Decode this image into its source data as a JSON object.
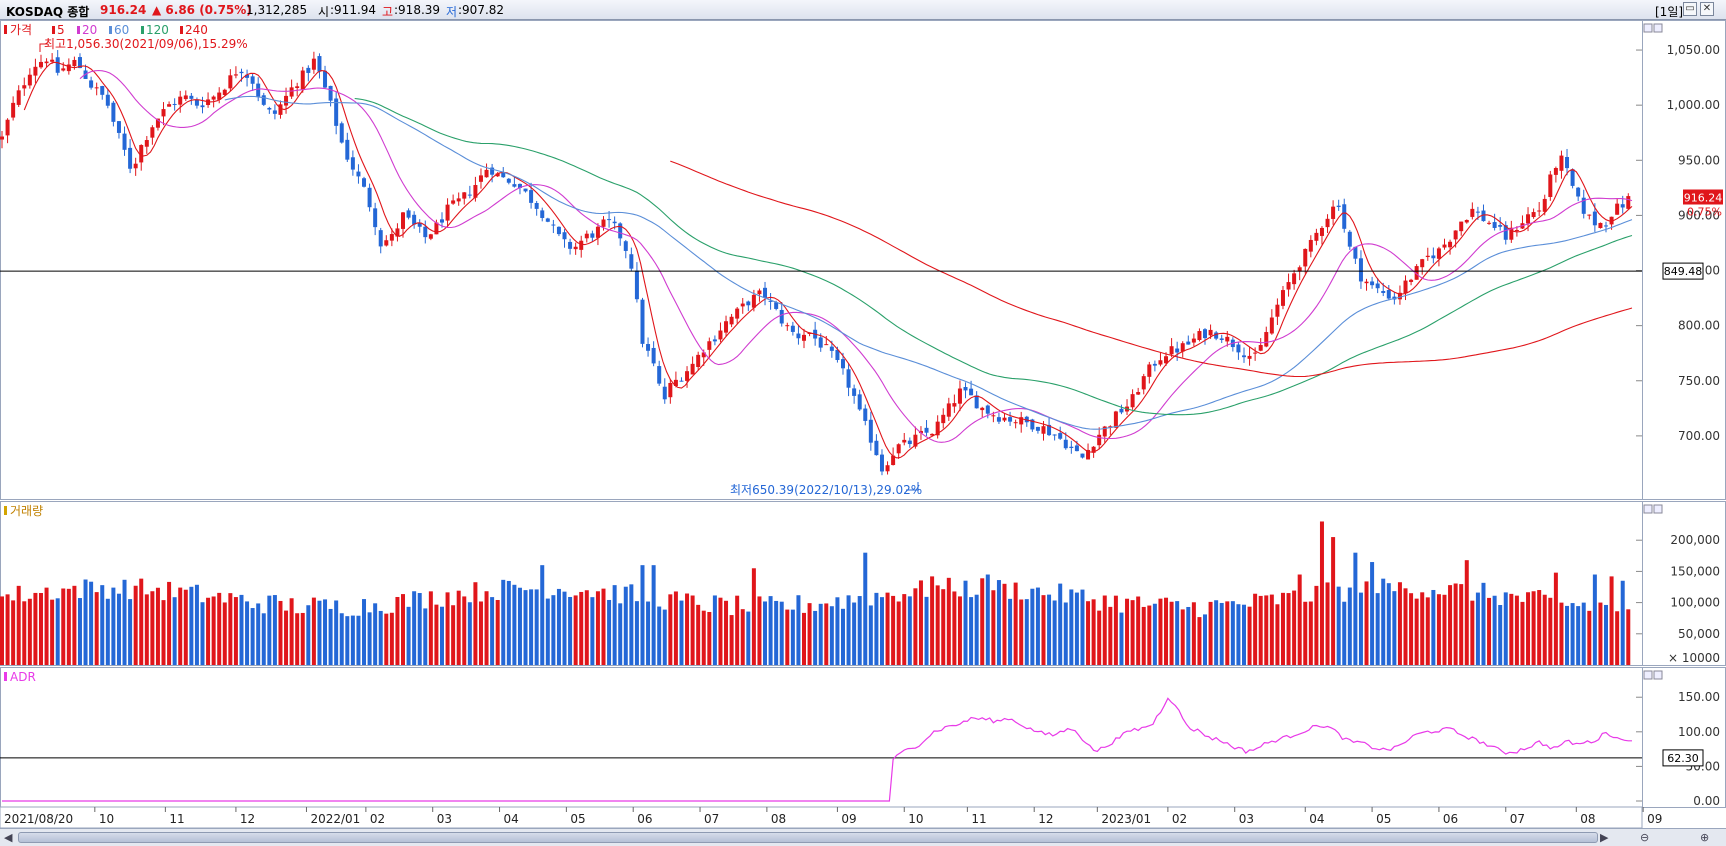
{
  "header": {
    "name": "KOSDAQ 종합",
    "price": "916.24",
    "change": "▲ 6.86 (0.75%)",
    "volume": "1,312,285",
    "open_label": "시",
    "open": ":911.94",
    "high_label": "고",
    "high": ":918.39",
    "low_label": "저",
    "low": ":907.82",
    "period": "[1일]"
  },
  "colors": {
    "up": "#e0161b",
    "down": "#2467d6",
    "ma5": "#e0161b",
    "ma20": "#d03cd0",
    "ma60": "#5a8ed8",
    "ma120": "#2aa06a",
    "ma240": "#e0161b",
    "adr": "#e83ae8"
  },
  "chart_data": [
    {
      "type": "candlestick",
      "title": "가격",
      "legend": [
        "5",
        "20",
        "60",
        "120",
        "240"
      ],
      "ylim": [
        650,
        1070
      ],
      "y_ticks": [
        "1,050.00",
        "1,000.00",
        "950.00",
        "900.00",
        "850.00",
        "800.00",
        "750.00",
        "700.00"
      ],
      "last_price_label": "916.24",
      "last_change_label": "0.75%",
      "hline_label": "849.48",
      "hline_value": 849.48,
      "max_annotation": "최고1,056.30(2021/09/06),15.29%",
      "min_annotation": "최저650.39(2022/10/13),29.02%",
      "close_path": [
        [
          0,
          970
        ],
        [
          6,
          1000
        ],
        [
          16,
          1035
        ],
        [
          24,
          1043
        ],
        [
          30,
          1030
        ],
        [
          40,
          1040
        ],
        [
          48,
          1018
        ],
        [
          56,
          1005
        ],
        [
          62,
          975
        ],
        [
          66,
          958
        ],
        [
          70,
          940
        ],
        [
          74,
          960
        ],
        [
          82,
          985
        ],
        [
          90,
          1000
        ],
        [
          98,
          1008
        ],
        [
          106,
          1000
        ],
        [
          114,
          1008
        ],
        [
          120,
          1018
        ],
        [
          128,
          1035
        ],
        [
          136,
          1020
        ],
        [
          140,
          1000
        ],
        [
          146,
          990
        ],
        [
          152,
          1005
        ],
        [
          158,
          1020
        ],
        [
          164,
          1030
        ],
        [
          168,
          1040
        ],
        [
          172,
          1025
        ],
        [
          178,
          995
        ],
        [
          184,
          960
        ],
        [
          190,
          940
        ],
        [
          196,
          920
        ],
        [
          200,
          900
        ],
        [
          204,
          875
        ],
        [
          210,
          880
        ],
        [
          216,
          900
        ],
        [
          222,
          890
        ],
        [
          228,
          880
        ],
        [
          234,
          890
        ],
        [
          240,
          905
        ],
        [
          248,
          915
        ],
        [
          256,
          930
        ],
        [
          262,
          945
        ],
        [
          268,
          935
        ],
        [
          276,
          930
        ],
        [
          282,
          920
        ],
        [
          290,
          905
        ],
        [
          296,
          890
        ],
        [
          302,
          875
        ],
        [
          308,
          870
        ],
        [
          314,
          880
        ],
        [
          320,
          885
        ],
        [
          326,
          895
        ],
        [
          332,
          885
        ],
        [
          336,
          870
        ],
        [
          340,
          850
        ],
        [
          344,
          790
        ],
        [
          348,
          775
        ],
        [
          352,
          760
        ],
        [
          356,
          730
        ],
        [
          360,
          745
        ],
        [
          366,
          755
        ],
        [
          372,
          765
        ],
        [
          378,
          780
        ],
        [
          384,
          790
        ],
        [
          388,
          800
        ],
        [
          396,
          812
        ],
        [
          402,
          822
        ],
        [
          410,
          830
        ],
        [
          416,
          815
        ],
        [
          422,
          800
        ],
        [
          428,
          790
        ],
        [
          434,
          795
        ],
        [
          440,
          785
        ],
        [
          446,
          775
        ],
        [
          452,
          760
        ],
        [
          458,
          740
        ],
        [
          462,
          720
        ],
        [
          466,
          705
        ],
        [
          470,
          690
        ],
        [
          474,
          670
        ],
        [
          478,
          680
        ],
        [
          482,
          690
        ],
        [
          488,
          693
        ],
        [
          494,
          700
        ],
        [
          502,
          705
        ],
        [
          508,
          720
        ],
        [
          516,
          740
        ],
        [
          522,
          735
        ],
        [
          528,
          725
        ],
        [
          536,
          718
        ],
        [
          544,
          715
        ],
        [
          552,
          712
        ],
        [
          560,
          708
        ],
        [
          566,
          702
        ],
        [
          572,
          695
        ],
        [
          578,
          685
        ],
        [
          582,
          680
        ],
        [
          586,
          690
        ],
        [
          590,
          700
        ],
        [
          596,
          710
        ],
        [
          602,
          722
        ],
        [
          608,
          730
        ],
        [
          614,
          750
        ],
        [
          620,
          765
        ],
        [
          626,
          775
        ],
        [
          632,
          778
        ],
        [
          638,
          782
        ],
        [
          644,
          790
        ],
        [
          650,
          795
        ],
        [
          656,
          792
        ],
        [
          662,
          785
        ],
        [
          670,
          775
        ],
        [
          676,
          770
        ],
        [
          680,
          790
        ],
        [
          686,
          815
        ],
        [
          692,
          835
        ],
        [
          698,
          855
        ],
        [
          704,
          870
        ],
        [
          710,
          890
        ],
        [
          716,
          905
        ],
        [
          720,
          912
        ],
        [
          722,
          895
        ],
        [
          726,
          870
        ],
        [
          732,
          845
        ],
        [
          738,
          835
        ],
        [
          744,
          830
        ],
        [
          750,
          825
        ],
        [
          756,
          838
        ],
        [
          762,
          850
        ],
        [
          768,
          862
        ],
        [
          774,
          868
        ],
        [
          780,
          880
        ],
        [
          786,
          895
        ],
        [
          792,
          905
        ],
        [
          798,
          897
        ],
        [
          804,
          890
        ],
        [
          810,
          880
        ],
        [
          816,
          890
        ],
        [
          822,
          900
        ],
        [
          828,
          905
        ],
        [
          832,
          920
        ],
        [
          836,
          945
        ],
        [
          840,
          950
        ],
        [
          844,
          935
        ],
        [
          848,
          915
        ],
        [
          852,
          905
        ],
        [
          856,
          895
        ],
        [
          860,
          892
        ],
        [
          864,
          895
        ],
        [
          868,
          905
        ],
        [
          872,
          908
        ],
        [
          876,
          915
        ],
        [
          878,
          912
        ]
      ]
    },
    {
      "type": "bar",
      "title": "거래량",
      "unit_label": "× 10000",
      "ylim": [
        0,
        250000
      ],
      "y_ticks": [
        "200,000",
        "150,000",
        "100,000",
        "50,000"
      ],
      "highlights": [
        [
          290,
          160000
        ],
        [
          346,
          160000
        ],
        [
          350,
          160000
        ],
        [
          404,
          155000
        ],
        [
          464,
          180000
        ],
        [
          500,
          142000
        ],
        [
          530,
          145000
        ],
        [
          700,
          145000
        ],
        [
          710,
          200000
        ],
        [
          712,
          230000
        ],
        [
          718,
          205000
        ],
        [
          730,
          180000
        ],
        [
          738,
          165000
        ],
        [
          790,
          168000
        ],
        [
          838,
          148000
        ],
        [
          858,
          145000
        ],
        [
          868,
          142000
        ],
        [
          874,
          135000
        ]
      ]
    },
    {
      "type": "line",
      "title": "ADR",
      "ylim": [
        0,
        185
      ],
      "y_ticks": [
        "150.00",
        "100.00",
        "50.00",
        "0.00"
      ],
      "hline_label": "62.30",
      "hline_value": 62.3,
      "path": [
        [
          0,
          0
        ],
        [
          478,
          0
        ],
        [
          480,
          60
        ],
        [
          486,
          72
        ],
        [
          494,
          82
        ],
        [
          502,
          100
        ],
        [
          510,
          108
        ],
        [
          518,
          113
        ],
        [
          522,
          120
        ],
        [
          530,
          118
        ],
        [
          536,
          115
        ],
        [
          542,
          120
        ],
        [
          548,
          112
        ],
        [
          554,
          104
        ],
        [
          560,
          98
        ],
        [
          566,
          95
        ],
        [
          572,
          102
        ],
        [
          578,
          104
        ],
        [
          582,
          90
        ],
        [
          586,
          78
        ],
        [
          590,
          72
        ],
        [
          596,
          82
        ],
        [
          602,
          92
        ],
        [
          608,
          102
        ],
        [
          614,
          105
        ],
        [
          620,
          112
        ],
        [
          624,
          130
        ],
        [
          628,
          150
        ],
        [
          632,
          140
        ],
        [
          636,
          118
        ],
        [
          640,
          105
        ],
        [
          646,
          100
        ],
        [
          650,
          92
        ],
        [
          656,
          88
        ],
        [
          662,
          80
        ],
        [
          670,
          72
        ],
        [
          676,
          76
        ],
        [
          680,
          82
        ],
        [
          686,
          88
        ],
        [
          692,
          92
        ],
        [
          698,
          98
        ],
        [
          704,
          104
        ],
        [
          710,
          110
        ],
        [
          716,
          105
        ],
        [
          722,
          92
        ],
        [
          726,
          86
        ],
        [
          732,
          84
        ],
        [
          738,
          78
        ],
        [
          744,
          74
        ],
        [
          750,
          76
        ],
        [
          756,
          86
        ],
        [
          762,
          96
        ],
        [
          768,
          100
        ],
        [
          774,
          102
        ],
        [
          780,
          104
        ],
        [
          786,
          96
        ],
        [
          792,
          90
        ],
        [
          798,
          84
        ],
        [
          804,
          76
        ],
        [
          810,
          70
        ],
        [
          816,
          72
        ],
        [
          822,
          78
        ],
        [
          828,
          85
        ],
        [
          832,
          80
        ],
        [
          836,
          76
        ],
        [
          840,
          82
        ],
        [
          844,
          86
        ],
        [
          848,
          82
        ],
        [
          852,
          84
        ],
        [
          856,
          86
        ],
        [
          860,
          90
        ],
        [
          864,
          100
        ],
        [
          868,
          94
        ],
        [
          872,
          88
        ],
        [
          878,
          90
        ]
      ]
    }
  ],
  "x_axis": {
    "start_label": "2021/08/20",
    "labels": [
      "10",
      "11",
      "12",
      "2022/01",
      "02",
      "03",
      "04",
      "05",
      "06",
      "07",
      "08",
      "09",
      "10",
      "11",
      "12",
      "2023/01",
      "02",
      "03",
      "04",
      "05",
      "06",
      "07",
      "08",
      "09"
    ],
    "positions": [
      50,
      88,
      126,
      164,
      196,
      232,
      268,
      304,
      340,
      376,
      412,
      450,
      486,
      520,
      556,
      590,
      628,
      664,
      702,
      738,
      774,
      810,
      848,
      884
    ]
  }
}
